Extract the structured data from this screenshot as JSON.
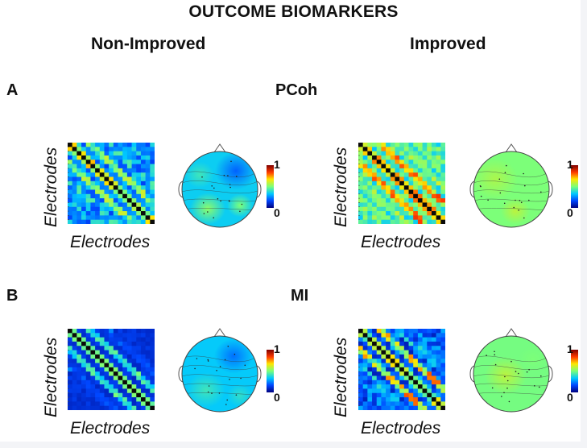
{
  "figure": {
    "title": "OUTCOME BIOMARKERS",
    "columns": [
      "Non-Improved",
      "Improved"
    ],
    "panels": [
      {
        "letter": "A",
        "metric": "PCoh"
      },
      {
        "letter": "B",
        "metric": "MI"
      }
    ],
    "axis_label": "Electrodes",
    "colorbar": {
      "max": "1",
      "min": "0"
    }
  },
  "colors": {
    "scale": [
      "#00007f",
      "#0047ff",
      "#00c8ff",
      "#7cff79",
      "#ffe600",
      "#ff3b00",
      "#7f0000"
    ]
  },
  "cells": [
    {
      "id": "A-nonimproved",
      "base": 0.28,
      "mottled": true,
      "pattern": 0.55,
      "diag": 0.9,
      "head": "low-mixed"
    },
    {
      "id": "A-improved",
      "base": 0.45,
      "mottled": true,
      "pattern": 0.75,
      "diag": 0.95,
      "head": "high"
    },
    {
      "id": "B-nonimproved",
      "base": 0.12,
      "mottled": false,
      "pattern": 0.45,
      "diag": 0.85,
      "head": "low"
    },
    {
      "id": "B-improved",
      "base": 0.2,
      "mottled": true,
      "pattern": 0.7,
      "diag": 0.9,
      "head": "high-center"
    }
  ]
}
